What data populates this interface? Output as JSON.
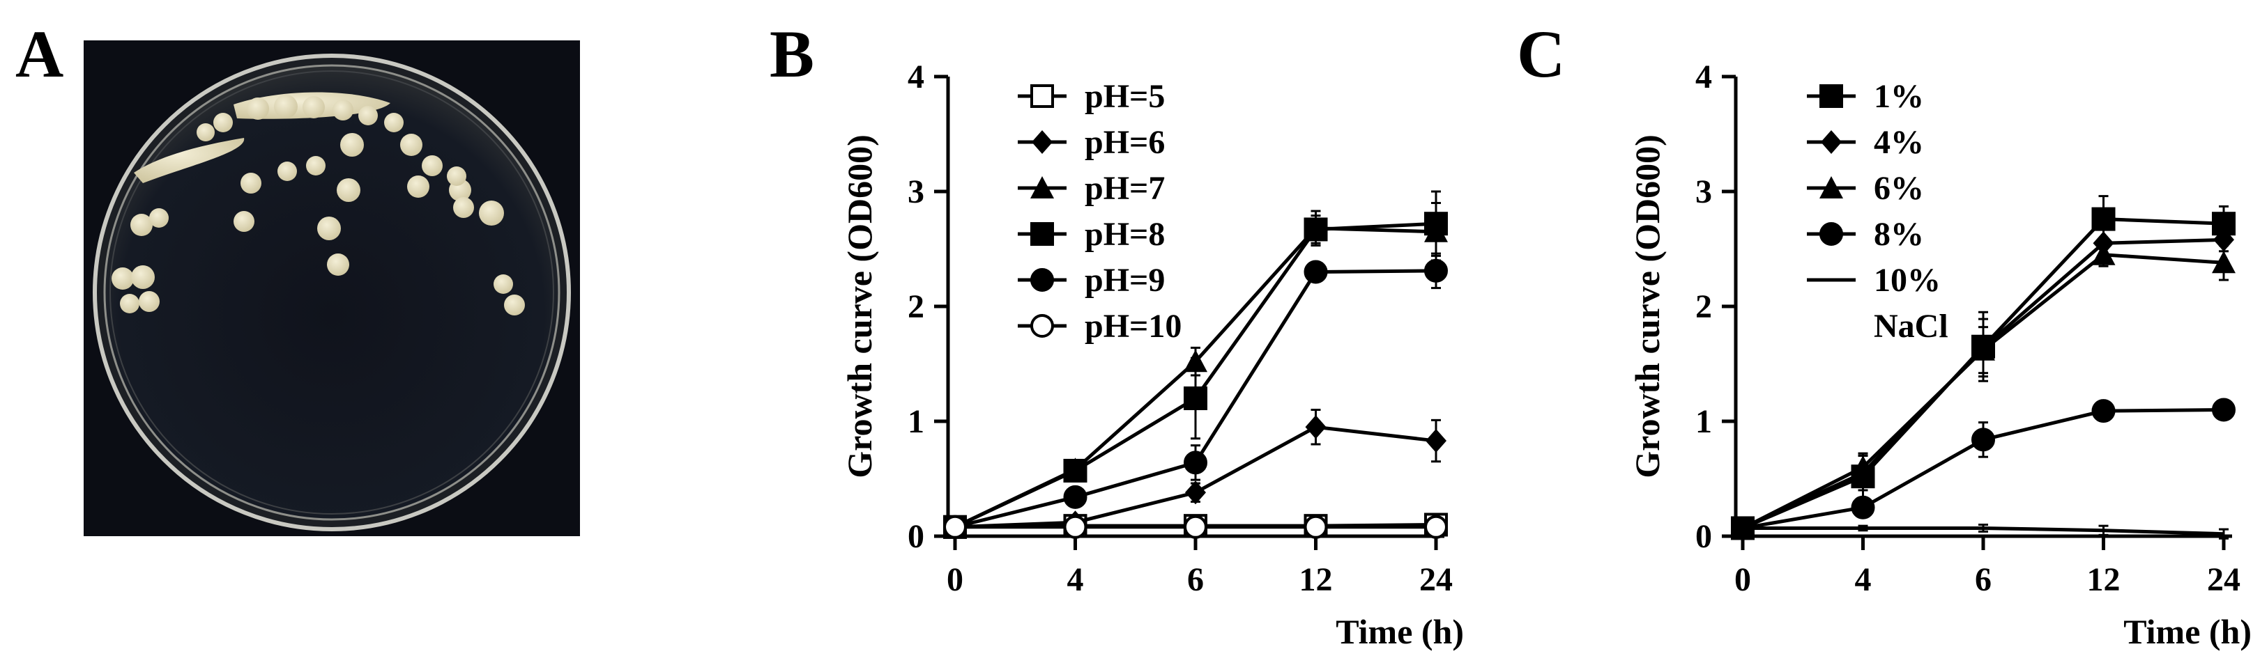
{
  "panels": {
    "a": "A",
    "b": "B",
    "c": "C"
  },
  "photo": {
    "description": "Petri dish with cream-colored bacterial colonies on dark agar",
    "colors": {
      "background": "#0b0d14",
      "agar": "#121722",
      "rim": "#b9b9b4",
      "colony": "#e8e2c4"
    }
  },
  "chart_data": [
    {
      "type": "line",
      "panel": "B",
      "title": "",
      "xlabel": "Time (h)",
      "ylabel": "Growth curve (OD600)",
      "categories": [
        "0",
        "4",
        "6",
        "12",
        "24"
      ],
      "ylim": [
        0,
        4
      ],
      "yticks": [
        "0",
        "1",
        "2",
        "3",
        "4"
      ],
      "legend_position": "top-left",
      "series": [
        {
          "name": "pH=5",
          "marker": "square-open",
          "values": [
            0.08,
            0.09,
            0.09,
            0.09,
            0.1
          ],
          "errors": [
            0.02,
            0.02,
            0.02,
            0.02,
            0.02
          ]
        },
        {
          "name": "pH=6",
          "marker": "diamond",
          "values": [
            0.08,
            0.12,
            0.38,
            0.95,
            0.83
          ],
          "errors": [
            0.02,
            0.04,
            0.08,
            0.15,
            0.18
          ]
        },
        {
          "name": "pH=7",
          "marker": "triangle",
          "values": [
            0.08,
            0.58,
            1.52,
            2.68,
            2.65
          ],
          "errors": [
            0.02,
            0.05,
            0.12,
            0.15,
            0.25
          ]
        },
        {
          "name": "pH=8",
          "marker": "square",
          "values": [
            0.08,
            0.57,
            1.2,
            2.67,
            2.72
          ],
          "errors": [
            0.02,
            0.05,
            0.35,
            0.12,
            0.28
          ]
        },
        {
          "name": "pH=9",
          "marker": "circle",
          "values": [
            0.08,
            0.34,
            0.64,
            2.3,
            2.31
          ],
          "errors": [
            0.02,
            0.04,
            0.15,
            0.05,
            0.15
          ]
        },
        {
          "name": "pH=10",
          "marker": "circle-open",
          "values": [
            0.08,
            0.08,
            0.08,
            0.08,
            0.08
          ],
          "errors": [
            0.02,
            0.02,
            0.02,
            0.02,
            0.02
          ]
        }
      ]
    },
    {
      "type": "line",
      "panel": "C",
      "title": "",
      "xlabel": "Time (h)",
      "ylabel": "Growth curve (OD600)",
      "categories": [
        "0",
        "4",
        "6",
        "12",
        "24"
      ],
      "ylim": [
        0,
        4
      ],
      "yticks": [
        "0",
        "1",
        "2",
        "3",
        "4"
      ],
      "legend_position": "top-left",
      "legend_note": "NaCl",
      "series": [
        {
          "name": "1%",
          "marker": "square",
          "values": [
            0.07,
            0.52,
            1.65,
            2.76,
            2.72
          ],
          "errors": [
            0.02,
            0.2,
            0.3,
            0.2,
            0.15
          ]
        },
        {
          "name": "4%",
          "marker": "diamond",
          "values": [
            0.07,
            0.55,
            1.64,
            2.55,
            2.58
          ],
          "errors": [
            0.02,
            0.15,
            0.25,
            0.12,
            0.1
          ]
        },
        {
          "name": "6%",
          "marker": "triangle",
          "values": [
            0.07,
            0.6,
            1.62,
            2.45,
            2.38
          ],
          "errors": [
            0.02,
            0.12,
            0.2,
            0.1,
            0.15
          ]
        },
        {
          "name": "8%",
          "marker": "circle",
          "values": [
            0.07,
            0.25,
            0.84,
            1.09,
            1.1
          ],
          "errors": [
            0.02,
            0.04,
            0.15,
            0.08,
            0.08
          ]
        },
        {
          "name": "10%",
          "marker": "none",
          "values": [
            0.07,
            0.07,
            0.07,
            0.05,
            0.02
          ],
          "errors": [
            0.01,
            0.02,
            0.03,
            0.04,
            0.04
          ]
        }
      ]
    }
  ]
}
